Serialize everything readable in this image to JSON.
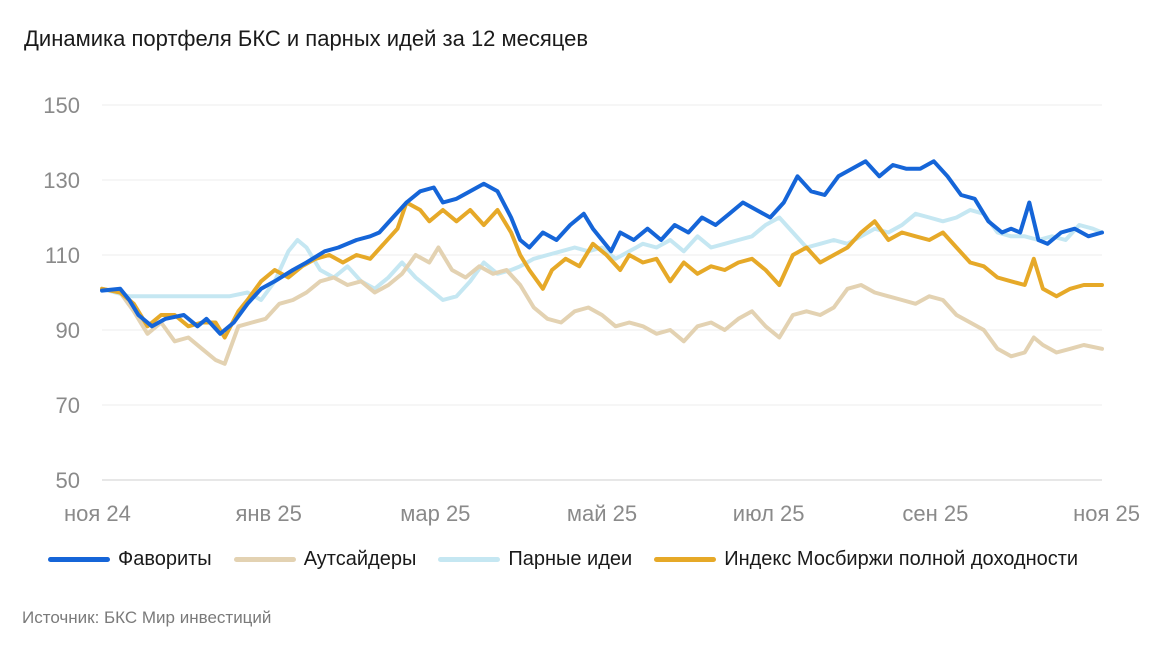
{
  "chart_data": {
    "type": "line",
    "title": "Динамика портфеля БКС и парных идей за 12 месяцев",
    "x_ticks": [
      "ноя 24",
      "янв 25",
      "мар 25",
      "май 25",
      "июл 25",
      "сен 25",
      "ноя 25"
    ],
    "y_ticks": [
      150,
      130,
      110,
      90,
      70,
      50
    ],
    "ylim": [
      50,
      150
    ],
    "grid": true,
    "legend_position": "bottom",
    "series": [
      {
        "name": "Фавориты",
        "color": "#1565d8",
        "points": [
          [
            0,
            100.5
          ],
          [
            0.2,
            101
          ],
          [
            0.3,
            98
          ],
          [
            0.4,
            94
          ],
          [
            0.55,
            91
          ],
          [
            0.7,
            93
          ],
          [
            0.9,
            94
          ],
          [
            1.05,
            91
          ],
          [
            1.15,
            93
          ],
          [
            1.3,
            89
          ],
          [
            1.45,
            92
          ],
          [
            1.6,
            97
          ],
          [
            1.75,
            101
          ],
          [
            1.9,
            103
          ],
          [
            2.1,
            106
          ],
          [
            2.25,
            108
          ],
          [
            2.45,
            111
          ],
          [
            2.6,
            112
          ],
          [
            2.8,
            114
          ],
          [
            2.95,
            115
          ],
          [
            3.05,
            116
          ],
          [
            3.2,
            120
          ],
          [
            3.35,
            124
          ],
          [
            3.5,
            127
          ],
          [
            3.65,
            128
          ],
          [
            3.75,
            124
          ],
          [
            3.9,
            125
          ],
          [
            4.05,
            127
          ],
          [
            4.2,
            129
          ],
          [
            4.35,
            127
          ],
          [
            4.5,
            120
          ],
          [
            4.6,
            114
          ],
          [
            4.7,
            112
          ],
          [
            4.85,
            116
          ],
          [
            5.0,
            114
          ],
          [
            5.15,
            118
          ],
          [
            5.3,
            121
          ],
          [
            5.4,
            117
          ],
          [
            5.5,
            114
          ],
          [
            5.6,
            111
          ],
          [
            5.7,
            116
          ],
          [
            5.85,
            114
          ],
          [
            6.0,
            117
          ],
          [
            6.15,
            114
          ],
          [
            6.3,
            118
          ],
          [
            6.45,
            116
          ],
          [
            6.6,
            120
          ],
          [
            6.75,
            118
          ],
          [
            6.9,
            121
          ],
          [
            7.05,
            124
          ],
          [
            7.2,
            122
          ],
          [
            7.35,
            120
          ],
          [
            7.5,
            124
          ],
          [
            7.65,
            131
          ],
          [
            7.8,
            127
          ],
          [
            7.95,
            126
          ],
          [
            8.1,
            131
          ],
          [
            8.25,
            133
          ],
          [
            8.4,
            135
          ],
          [
            8.55,
            131
          ],
          [
            8.7,
            134
          ],
          [
            8.85,
            133
          ],
          [
            9.0,
            133
          ],
          [
            9.15,
            135
          ],
          [
            9.3,
            131
          ],
          [
            9.45,
            126
          ],
          [
            9.6,
            125
          ],
          [
            9.75,
            119
          ],
          [
            9.9,
            116
          ],
          [
            10.0,
            117
          ],
          [
            10.1,
            116
          ],
          [
            10.2,
            124
          ],
          [
            10.3,
            114
          ],
          [
            10.4,
            113
          ],
          [
            10.55,
            116
          ],
          [
            10.7,
            117
          ],
          [
            10.85,
            115
          ],
          [
            11.0,
            116
          ]
        ]
      },
      {
        "name": "Аутсайдеры",
        "color": "#e3d2b2",
        "points": [
          [
            0,
            101
          ],
          [
            0.2,
            100
          ],
          [
            0.35,
            95
          ],
          [
            0.5,
            89
          ],
          [
            0.65,
            92
          ],
          [
            0.8,
            87
          ],
          [
            0.95,
            88
          ],
          [
            1.1,
            85
          ],
          [
            1.25,
            82
          ],
          [
            1.35,
            81
          ],
          [
            1.5,
            91
          ],
          [
            1.65,
            92
          ],
          [
            1.8,
            93
          ],
          [
            1.95,
            97
          ],
          [
            2.1,
            98
          ],
          [
            2.25,
            100
          ],
          [
            2.4,
            103
          ],
          [
            2.55,
            104
          ],
          [
            2.7,
            102
          ],
          [
            2.85,
            103
          ],
          [
            3.0,
            100
          ],
          [
            3.15,
            102
          ],
          [
            3.3,
            105
          ],
          [
            3.45,
            110
          ],
          [
            3.6,
            108
          ],
          [
            3.7,
            112
          ],
          [
            3.85,
            106
          ],
          [
            4.0,
            104
          ],
          [
            4.15,
            107
          ],
          [
            4.3,
            105
          ],
          [
            4.45,
            106
          ],
          [
            4.6,
            102
          ],
          [
            4.75,
            96
          ],
          [
            4.9,
            93
          ],
          [
            5.05,
            92
          ],
          [
            5.2,
            95
          ],
          [
            5.35,
            96
          ],
          [
            5.5,
            94
          ],
          [
            5.65,
            91
          ],
          [
            5.8,
            92
          ],
          [
            5.95,
            91
          ],
          [
            6.1,
            89
          ],
          [
            6.25,
            90
          ],
          [
            6.4,
            87
          ],
          [
            6.55,
            91
          ],
          [
            6.7,
            92
          ],
          [
            6.85,
            90
          ],
          [
            7.0,
            93
          ],
          [
            7.15,
            95
          ],
          [
            7.3,
            91
          ],
          [
            7.45,
            88
          ],
          [
            7.6,
            94
          ],
          [
            7.75,
            95
          ],
          [
            7.9,
            94
          ],
          [
            8.05,
            96
          ],
          [
            8.2,
            101
          ],
          [
            8.35,
            102
          ],
          [
            8.5,
            100
          ],
          [
            8.65,
            99
          ],
          [
            8.8,
            98
          ],
          [
            8.95,
            97
          ],
          [
            9.1,
            99
          ],
          [
            9.25,
            98
          ],
          [
            9.4,
            94
          ],
          [
            9.55,
            92
          ],
          [
            9.7,
            90
          ],
          [
            9.85,
            85
          ],
          [
            10.0,
            83
          ],
          [
            10.15,
            84
          ],
          [
            10.25,
            88
          ],
          [
            10.35,
            86
          ],
          [
            10.5,
            84
          ],
          [
            10.65,
            85
          ],
          [
            10.8,
            86
          ],
          [
            11.0,
            85
          ]
        ]
      },
      {
        "name": "Парные идеи",
        "color": "#c5e7f2",
        "points": [
          [
            0,
            101
          ],
          [
            0.3,
            99
          ],
          [
            0.6,
            99
          ],
          [
            0.9,
            99
          ],
          [
            1.2,
            99
          ],
          [
            1.4,
            99
          ],
          [
            1.6,
            100
          ],
          [
            1.75,
            98
          ],
          [
            1.9,
            103
          ],
          [
            2.05,
            111
          ],
          [
            2.15,
            114
          ],
          [
            2.25,
            112
          ],
          [
            2.4,
            106
          ],
          [
            2.55,
            104
          ],
          [
            2.7,
            107
          ],
          [
            2.85,
            103
          ],
          [
            3.0,
            101
          ],
          [
            3.15,
            104
          ],
          [
            3.3,
            108
          ],
          [
            3.45,
            104
          ],
          [
            3.6,
            101
          ],
          [
            3.75,
            98
          ],
          [
            3.9,
            99
          ],
          [
            4.05,
            103
          ],
          [
            4.2,
            108
          ],
          [
            4.35,
            105
          ],
          [
            4.5,
            106
          ],
          [
            4.6,
            107
          ],
          [
            4.75,
            109
          ],
          [
            4.9,
            110
          ],
          [
            5.05,
            111
          ],
          [
            5.2,
            112
          ],
          [
            5.35,
            111
          ],
          [
            5.5,
            112
          ],
          [
            5.65,
            109
          ],
          [
            5.8,
            111
          ],
          [
            5.95,
            113
          ],
          [
            6.1,
            112
          ],
          [
            6.25,
            114
          ],
          [
            6.4,
            111
          ],
          [
            6.55,
            115
          ],
          [
            6.7,
            112
          ],
          [
            6.85,
            113
          ],
          [
            7.0,
            114
          ],
          [
            7.15,
            115
          ],
          [
            7.3,
            118
          ],
          [
            7.45,
            120
          ],
          [
            7.6,
            116
          ],
          [
            7.75,
            112
          ],
          [
            7.9,
            113
          ],
          [
            8.05,
            114
          ],
          [
            8.2,
            113
          ],
          [
            8.35,
            115
          ],
          [
            8.5,
            117
          ],
          [
            8.65,
            116
          ],
          [
            8.8,
            118
          ],
          [
            8.95,
            121
          ],
          [
            9.1,
            120
          ],
          [
            9.25,
            119
          ],
          [
            9.4,
            120
          ],
          [
            9.55,
            122
          ],
          [
            9.7,
            121
          ],
          [
            9.85,
            116
          ],
          [
            10.0,
            115
          ],
          [
            10.15,
            115
          ],
          [
            10.3,
            114
          ],
          [
            10.45,
            115
          ],
          [
            10.6,
            114
          ],
          [
            10.75,
            118
          ],
          [
            10.9,
            117
          ],
          [
            11.0,
            116
          ]
        ]
      },
      {
        "name": "Индекс Мосбиржи полной доходности",
        "color": "#e6a928",
        "points": [
          [
            0,
            101
          ],
          [
            0.2,
            100
          ],
          [
            0.35,
            97
          ],
          [
            0.5,
            91
          ],
          [
            0.65,
            94
          ],
          [
            0.8,
            94
          ],
          [
            0.95,
            91
          ],
          [
            1.1,
            92
          ],
          [
            1.25,
            92
          ],
          [
            1.35,
            88
          ],
          [
            1.5,
            95
          ],
          [
            1.6,
            98
          ],
          [
            1.75,
            103
          ],
          [
            1.9,
            106
          ],
          [
            2.05,
            104
          ],
          [
            2.2,
            107
          ],
          [
            2.35,
            109
          ],
          [
            2.5,
            110
          ],
          [
            2.65,
            108
          ],
          [
            2.8,
            110
          ],
          [
            2.95,
            109
          ],
          [
            3.1,
            113
          ],
          [
            3.25,
            117
          ],
          [
            3.35,
            124
          ],
          [
            3.5,
            122
          ],
          [
            3.6,
            119
          ],
          [
            3.75,
            122
          ],
          [
            3.9,
            119
          ],
          [
            4.05,
            122
          ],
          [
            4.2,
            118
          ],
          [
            4.35,
            122
          ],
          [
            4.5,
            116
          ],
          [
            4.6,
            110
          ],
          [
            4.7,
            106
          ],
          [
            4.85,
            101
          ],
          [
            4.95,
            106
          ],
          [
            5.1,
            109
          ],
          [
            5.25,
            107
          ],
          [
            5.4,
            113
          ],
          [
            5.55,
            110
          ],
          [
            5.7,
            106
          ],
          [
            5.8,
            110
          ],
          [
            5.95,
            108
          ],
          [
            6.1,
            109
          ],
          [
            6.25,
            103
          ],
          [
            6.4,
            108
          ],
          [
            6.55,
            105
          ],
          [
            6.7,
            107
          ],
          [
            6.85,
            106
          ],
          [
            7.0,
            108
          ],
          [
            7.15,
            109
          ],
          [
            7.3,
            106
          ],
          [
            7.45,
            102
          ],
          [
            7.6,
            110
          ],
          [
            7.75,
            112
          ],
          [
            7.9,
            108
          ],
          [
            8.05,
            110
          ],
          [
            8.2,
            112
          ],
          [
            8.35,
            116
          ],
          [
            8.5,
            119
          ],
          [
            8.65,
            114
          ],
          [
            8.8,
            116
          ],
          [
            8.95,
            115
          ],
          [
            9.1,
            114
          ],
          [
            9.25,
            116
          ],
          [
            9.4,
            112
          ],
          [
            9.55,
            108
          ],
          [
            9.7,
            107
          ],
          [
            9.85,
            104
          ],
          [
            10.0,
            103
          ],
          [
            10.15,
            102
          ],
          [
            10.25,
            109
          ],
          [
            10.35,
            101
          ],
          [
            10.5,
            99
          ],
          [
            10.65,
            101
          ],
          [
            10.8,
            102
          ],
          [
            11.0,
            102
          ]
        ]
      }
    ]
  },
  "source": "Источник: БКС Мир инвестиций"
}
